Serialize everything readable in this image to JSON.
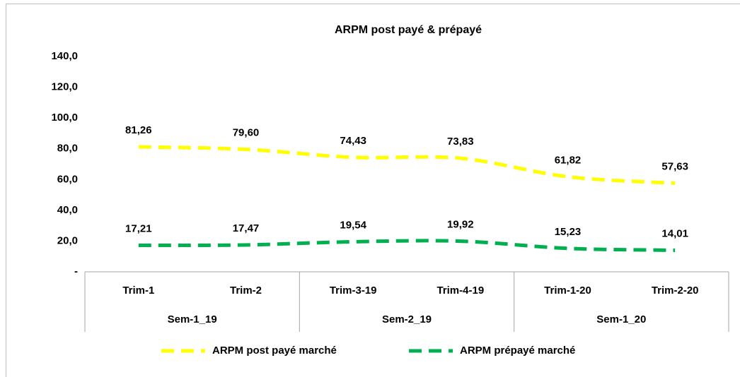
{
  "chart_data": {
    "type": "line",
    "title": "ARPM post payé  & prépayé",
    "categories": [
      "Trim-1",
      "Trim-2",
      "Trim-3-19",
      "Trim-4-19",
      "Trim-1-20",
      "Trim-2-20"
    ],
    "group_categories": [
      "Sem-1_19",
      null,
      "Sem-2_19",
      null,
      "Sem-1_20",
      null
    ],
    "series": [
      {
        "name": "ARPM post payé marché",
        "color": "#ffff00",
        "values": [
          81.26,
          79.6,
          74.43,
          73.83,
          61.82,
          57.63
        ],
        "value_labels": [
          "81,26",
          "79,60",
          "74,43",
          "73,83",
          "61,82",
          "57,63"
        ]
      },
      {
        "name": "ARPM prépayé marché",
        "color": "#00b050",
        "values": [
          17.21,
          17.47,
          19.54,
          19.92,
          15.23,
          14.01
        ],
        "value_labels": [
          "17,21",
          "17,47",
          "19,54",
          "19,92",
          "15,23",
          "14,01"
        ]
      }
    ],
    "ylim": [
      0,
      140
    ],
    "yticks": [
      {
        "value": 0,
        "label": "-"
      },
      {
        "value": 20,
        "label": "20,0"
      },
      {
        "value": 40,
        "label": "40,0"
      },
      {
        "value": 60,
        "label": "60,0"
      },
      {
        "value": 80,
        "label": "80,0"
      },
      {
        "value": 100,
        "label": "100,0"
      },
      {
        "value": 120,
        "label": "120,0"
      },
      {
        "value": 140,
        "label": "140,0"
      }
    ],
    "smooth": true,
    "grid": false,
    "legend": "bottom"
  }
}
